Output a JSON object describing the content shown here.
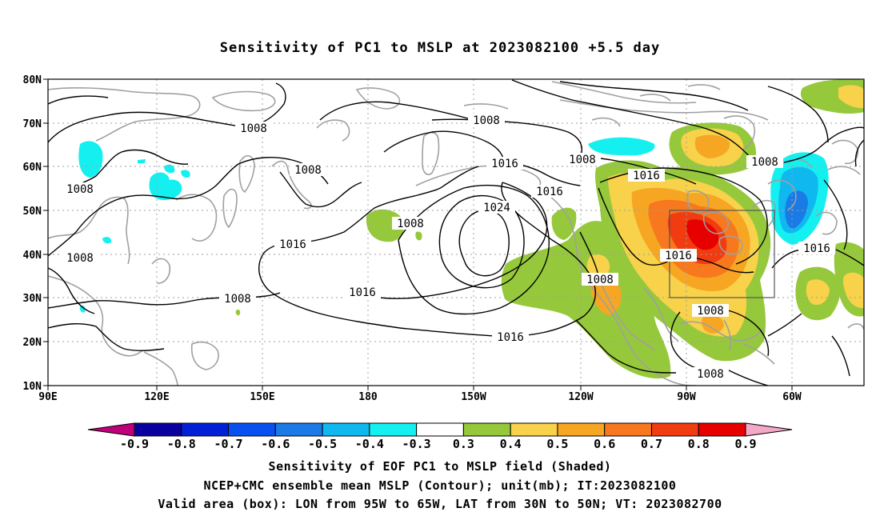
{
  "title": "Sensitivity of PC1 to MSLP at 2023082100 +5.5 day",
  "lat_labels": [
    "80N",
    "70N",
    "60N",
    "50N",
    "40N",
    "30N",
    "20N",
    "10N"
  ],
  "lon_labels": [
    "90E",
    "120E",
    "150E",
    "180",
    "150W",
    "120W",
    "90W",
    "60W"
  ],
  "contour_labels": [
    {
      "text": "1008"
    },
    {
      "text": "1008"
    },
    {
      "text": "1008"
    },
    {
      "text": "1008"
    },
    {
      "text": "1008"
    },
    {
      "text": "1016"
    },
    {
      "text": "1016"
    },
    {
      "text": "1024"
    },
    {
      "text": "1016"
    },
    {
      "text": "1016"
    },
    {
      "text": "1008"
    },
    {
      "text": "1016"
    },
    {
      "text": "1016"
    },
    {
      "text": "1008"
    },
    {
      "text": "1008"
    },
    {
      "text": "1016"
    },
    {
      "text": "1008"
    },
    {
      "text": "1008"
    },
    {
      "text": "1008"
    },
    {
      "text": "1008"
    }
  ],
  "colorbar": {
    "ticks": [
      "-0.9",
      "-0.8",
      "-0.7",
      "-0.6",
      "-0.5",
      "-0.4",
      "-0.3",
      "0.3",
      "0.4",
      "0.5",
      "0.6",
      "0.7",
      "0.8",
      "0.9"
    ],
    "colors": [
      "#0a00a0",
      "#0020d8",
      "#0a50f0",
      "#1a7ae6",
      "#10b8f0",
      "#14f0f0",
      "#ffffff",
      "#96c83c",
      "#f7d24a",
      "#f6a623",
      "#f7781e",
      "#f03c10",
      "#e60000"
    ],
    "left_end_color": "#c0007a",
    "right_end_color": "#f4a8c8"
  },
  "captions": [
    "Sensitivity of EOF PC1 to MSLP field (Shaded)",
    "NCEP+CMC ensemble mean MSLP (Contour); unit(mb); IT:2023082100",
    "Valid area (box): LON from 95W to 65W, LAT from 30N to 50N; VT: 2023082700"
  ]
}
